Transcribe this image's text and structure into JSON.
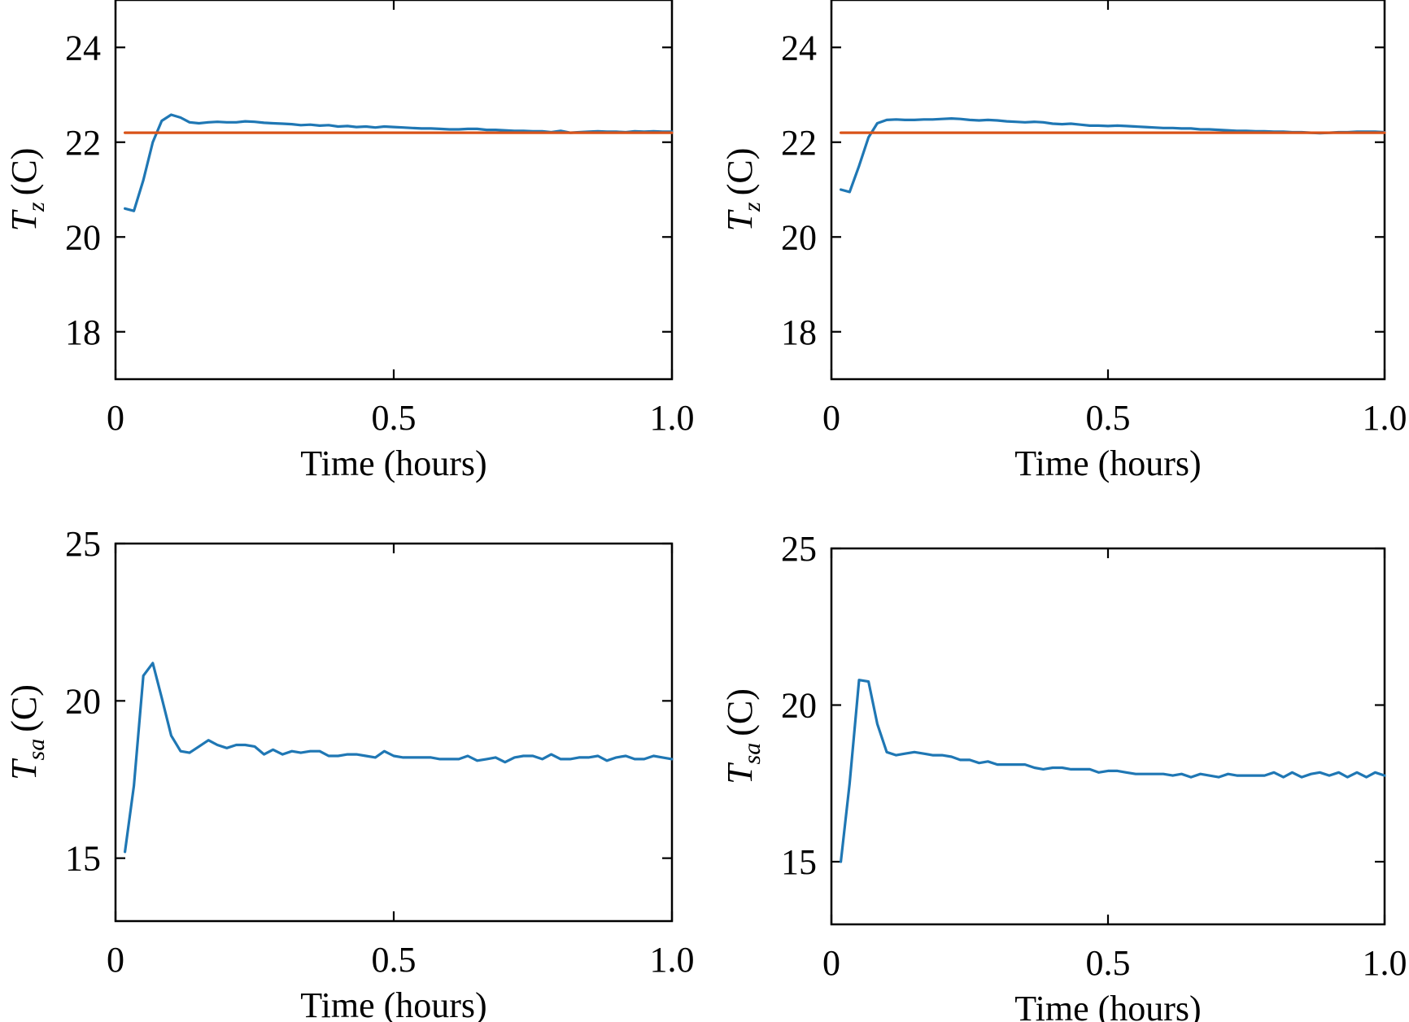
{
  "chart_data": [
    {
      "type": "line",
      "xlabel": "Time (hours)",
      "ylabel": {
        "symbol": "T",
        "subscript": "z",
        "unit": "(C)"
      },
      "xlim": [
        0,
        1.0
      ],
      "ylim": [
        17,
        25
      ],
      "xticks": [
        0,
        0.5,
        1.0
      ],
      "xtick_labels": [
        "0",
        "0.5",
        "1.0"
      ],
      "yticks": [
        18,
        20,
        22,
        24
      ],
      "ytick_labels": [
        "18",
        "20",
        "22",
        "24"
      ],
      "grid": false,
      "series": [
        {
          "color": "#1f77b4",
          "x": [
            0.017,
            0.033,
            0.05,
            0.067,
            0.083,
            0.1,
            0.117,
            0.133,
            0.15,
            0.167,
            0.183,
            0.2,
            0.217,
            0.233,
            0.25,
            0.267,
            0.283,
            0.3,
            0.317,
            0.333,
            0.35,
            0.367,
            0.383,
            0.4,
            0.417,
            0.433,
            0.45,
            0.467,
            0.483,
            0.5,
            0.517,
            0.533,
            0.55,
            0.567,
            0.583,
            0.6,
            0.617,
            0.633,
            0.65,
            0.667,
            0.683,
            0.7,
            0.717,
            0.733,
            0.75,
            0.767,
            0.783,
            0.8,
            0.817,
            0.833,
            0.85,
            0.867,
            0.883,
            0.9,
            0.917,
            0.933,
            0.95,
            0.967,
            0.983,
            1.0
          ],
          "y": [
            20.6,
            20.55,
            21.2,
            22.0,
            22.45,
            22.58,
            22.52,
            22.42,
            22.4,
            22.42,
            22.43,
            22.42,
            22.42,
            22.44,
            22.43,
            22.41,
            22.4,
            22.39,
            22.38,
            22.36,
            22.37,
            22.35,
            22.36,
            22.33,
            22.34,
            22.32,
            22.33,
            22.31,
            22.33,
            22.32,
            22.31,
            22.3,
            22.29,
            22.29,
            22.28,
            22.27,
            22.27,
            22.28,
            22.28,
            22.26,
            22.26,
            22.25,
            22.24,
            22.24,
            22.23,
            22.23,
            22.21,
            22.24,
            22.2,
            22.21,
            22.22,
            22.23,
            22.22,
            22.22,
            22.21,
            22.23,
            22.22,
            22.23,
            22.22,
            22.22
          ]
        },
        {
          "color": "#d95319",
          "x": [
            0.017,
            1.0
          ],
          "y": [
            22.2,
            22.2
          ]
        }
      ]
    },
    {
      "type": "line",
      "xlabel": "Time (hours)",
      "ylabel": {
        "symbol": "T",
        "subscript": "z",
        "unit": "(C)"
      },
      "xlim": [
        0,
        1.0
      ],
      "ylim": [
        17,
        25
      ],
      "xticks": [
        0,
        0.5,
        1.0
      ],
      "xtick_labels": [
        "0",
        "0.5",
        "1.0"
      ],
      "yticks": [
        18,
        20,
        22,
        24
      ],
      "ytick_labels": [
        "18",
        "20",
        "22",
        "24"
      ],
      "grid": false,
      "series": [
        {
          "color": "#1f77b4",
          "x": [
            0.017,
            0.033,
            0.05,
            0.067,
            0.083,
            0.1,
            0.117,
            0.133,
            0.15,
            0.167,
            0.183,
            0.2,
            0.217,
            0.233,
            0.25,
            0.267,
            0.283,
            0.3,
            0.317,
            0.333,
            0.35,
            0.367,
            0.383,
            0.4,
            0.417,
            0.433,
            0.45,
            0.467,
            0.483,
            0.5,
            0.517,
            0.533,
            0.55,
            0.567,
            0.583,
            0.6,
            0.617,
            0.633,
            0.65,
            0.667,
            0.683,
            0.7,
            0.717,
            0.733,
            0.75,
            0.767,
            0.783,
            0.8,
            0.817,
            0.833,
            0.85,
            0.867,
            0.883,
            0.9,
            0.917,
            0.933,
            0.95,
            0.967,
            0.983,
            1.0
          ],
          "y": [
            21.0,
            20.95,
            21.5,
            22.1,
            22.4,
            22.47,
            22.48,
            22.47,
            22.47,
            22.48,
            22.48,
            22.49,
            22.5,
            22.49,
            22.47,
            22.46,
            22.47,
            22.46,
            22.44,
            22.43,
            22.42,
            22.43,
            22.42,
            22.39,
            22.38,
            22.39,
            22.37,
            22.35,
            22.35,
            22.34,
            22.35,
            22.34,
            22.33,
            22.32,
            22.31,
            22.3,
            22.3,
            22.29,
            22.29,
            22.27,
            22.27,
            22.26,
            22.25,
            22.24,
            22.24,
            22.23,
            22.23,
            22.22,
            22.22,
            22.21,
            22.21,
            22.2,
            22.19,
            22.2,
            22.21,
            22.21,
            22.22,
            22.22,
            22.22,
            22.21
          ]
        },
        {
          "color": "#d95319",
          "x": [
            0.017,
            1.0
          ],
          "y": [
            22.2,
            22.2
          ]
        }
      ]
    },
    {
      "type": "line",
      "xlabel": "Time (hours)",
      "ylabel": {
        "symbol": "T",
        "subscript": "sa",
        "unit": "(C)"
      },
      "xlim": [
        0,
        1.0
      ],
      "ylim": [
        13,
        25
      ],
      "xticks": [
        0,
        0.5,
        1.0
      ],
      "xtick_labels": [
        "0",
        "0.5",
        "1.0"
      ],
      "yticks": [
        15,
        20,
        25
      ],
      "ytick_labels": [
        "15",
        "20",
        "25"
      ],
      "grid": false,
      "series": [
        {
          "color": "#1f77b4",
          "x": [
            0.017,
            0.033,
            0.05,
            0.067,
            0.083,
            0.1,
            0.117,
            0.133,
            0.15,
            0.167,
            0.183,
            0.2,
            0.217,
            0.233,
            0.25,
            0.267,
            0.283,
            0.3,
            0.317,
            0.333,
            0.35,
            0.367,
            0.383,
            0.4,
            0.417,
            0.433,
            0.45,
            0.467,
            0.483,
            0.5,
            0.517,
            0.533,
            0.55,
            0.567,
            0.583,
            0.6,
            0.617,
            0.633,
            0.65,
            0.667,
            0.683,
            0.7,
            0.717,
            0.733,
            0.75,
            0.767,
            0.783,
            0.8,
            0.817,
            0.833,
            0.85,
            0.867,
            0.883,
            0.9,
            0.917,
            0.933,
            0.95,
            0.967,
            0.983,
            1.0
          ],
          "y": [
            15.2,
            17.3,
            20.8,
            21.2,
            20.1,
            18.9,
            18.4,
            18.35,
            18.55,
            18.75,
            18.6,
            18.5,
            18.6,
            18.6,
            18.55,
            18.3,
            18.45,
            18.3,
            18.4,
            18.35,
            18.4,
            18.4,
            18.25,
            18.25,
            18.3,
            18.3,
            18.25,
            18.2,
            18.4,
            18.25,
            18.2,
            18.2,
            18.2,
            18.2,
            18.15,
            18.15,
            18.15,
            18.25,
            18.1,
            18.15,
            18.2,
            18.05,
            18.2,
            18.25,
            18.25,
            18.15,
            18.3,
            18.15,
            18.15,
            18.2,
            18.2,
            18.25,
            18.1,
            18.2,
            18.25,
            18.15,
            18.15,
            18.25,
            18.2,
            18.15
          ]
        }
      ]
    },
    {
      "type": "line",
      "xlabel": "Time (hours)",
      "ylabel": {
        "symbol": "T",
        "subscript": "sa",
        "unit": "(C)"
      },
      "xlim": [
        0,
        1.0
      ],
      "ylim": [
        13,
        25
      ],
      "xticks": [
        0,
        0.5,
        1.0
      ],
      "xtick_labels": [
        "0",
        "0.5",
        "1.0"
      ],
      "yticks": [
        15,
        20,
        25
      ],
      "ytick_labels": [
        "15",
        "20",
        "25"
      ],
      "grid": false,
      "series": [
        {
          "color": "#1f77b4",
          "x": [
            0.017,
            0.033,
            0.05,
            0.067,
            0.083,
            0.1,
            0.117,
            0.133,
            0.15,
            0.167,
            0.183,
            0.2,
            0.217,
            0.233,
            0.25,
            0.267,
            0.283,
            0.3,
            0.317,
            0.333,
            0.35,
            0.367,
            0.383,
            0.4,
            0.417,
            0.433,
            0.45,
            0.467,
            0.483,
            0.5,
            0.517,
            0.533,
            0.55,
            0.567,
            0.583,
            0.6,
            0.617,
            0.633,
            0.65,
            0.667,
            0.683,
            0.7,
            0.717,
            0.733,
            0.75,
            0.767,
            0.783,
            0.8,
            0.817,
            0.833,
            0.85,
            0.867,
            0.883,
            0.9,
            0.917,
            0.933,
            0.95,
            0.967,
            0.983,
            1.0
          ],
          "y": [
            15.0,
            17.5,
            20.8,
            20.75,
            19.4,
            18.5,
            18.4,
            18.45,
            18.5,
            18.45,
            18.4,
            18.4,
            18.35,
            18.25,
            18.25,
            18.15,
            18.2,
            18.1,
            18.1,
            18.1,
            18.1,
            18.0,
            17.95,
            18.0,
            18.0,
            17.95,
            17.95,
            17.95,
            17.85,
            17.9,
            17.9,
            17.85,
            17.8,
            17.8,
            17.8,
            17.8,
            17.75,
            17.8,
            17.7,
            17.8,
            17.75,
            17.7,
            17.8,
            17.75,
            17.75,
            17.75,
            17.75,
            17.85,
            17.7,
            17.85,
            17.7,
            17.8,
            17.85,
            17.75,
            17.85,
            17.7,
            17.85,
            17.7,
            17.85,
            17.75
          ]
        }
      ]
    }
  ]
}
